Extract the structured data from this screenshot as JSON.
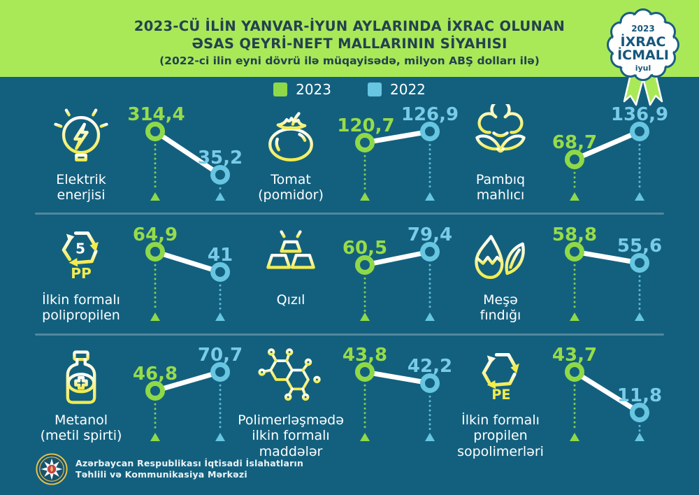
{
  "header": {
    "title_line1": "2023-CÜ İLİN YANVAR-İYUN AYLARINDA İXRAC OLUNAN",
    "title_line2": "ƏSAS QEYRİ-NEFT MALLARININ SİYAHISI",
    "title_line3": "(2022-ci ilin eyni dövrü ilə müqayisədə, milyon ABŞ dolları ilə)"
  },
  "badge": {
    "year": "2023",
    "line1": "İXRAC",
    "line2": "İCMALI",
    "month": "iyul"
  },
  "legend": [
    {
      "label": "2023",
      "color": "#8FD948"
    },
    {
      "label": "2022",
      "color": "#67C6E1"
    }
  ],
  "colors": {
    "bg": "#13607E",
    "header_green": "#A9E958",
    "title_dark": "#24414F",
    "green": "#8FD948",
    "green_text": "#97DC49",
    "blue": "#67C6E1",
    "blue_text": "#79CCE7",
    "icon_yellow": "#F2EC4D",
    "separator": "#5E8FA4",
    "badge_blue": "#1A5E83"
  },
  "chart_data": {
    "type": "line",
    "variant": "dumbbell-pair",
    "title": "2023-cü ilin yanvar-iyun aylarında ixrac olunan əsas qeyri-neft mallarının siyahısı",
    "subtitle": "2022-ci ilin eyni dövrü ilə müqayisədə",
    "unit": "milyon ABŞ dolları",
    "series_years": [
      "2023",
      "2022"
    ],
    "legend_position": "top-center",
    "items": [
      {
        "name": "Elektrik enerjisi",
        "icon": "light-bulb",
        "value_2023": 314.4,
        "value_2022": 35.2,
        "display_2023": "314,4",
        "display_2022": "35,2",
        "label_lines": [
          "Elektrik",
          "enerjisi"
        ]
      },
      {
        "name": "Tomat (pomidor)",
        "icon": "tomato",
        "value_2023": 120.7,
        "value_2022": 126.9,
        "display_2023": "120,7",
        "display_2022": "126,9",
        "label_lines": [
          "Tomat",
          "(pomidor)"
        ]
      },
      {
        "name": "Pambıq mahlıcı",
        "icon": "cotton",
        "value_2023": 68.7,
        "value_2022": 136.9,
        "display_2023": "68,7",
        "display_2022": "136,9",
        "label_lines": [
          "Pambıq",
          "mahlıcı"
        ]
      },
      {
        "name": "İlkin formalı polipropilen",
        "icon": "recycling-pp",
        "recycling_code": "5",
        "recycling_text": "PP",
        "value_2023": 64.9,
        "value_2022": 41,
        "display_2023": "64,9",
        "display_2022": "41",
        "label_lines": [
          "İlkin formalı",
          "polipropilen"
        ]
      },
      {
        "name": "Qızıl",
        "icon": "gold-bars",
        "value_2023": 60.5,
        "value_2022": 79.4,
        "display_2023": "60,5",
        "display_2022": "79,4",
        "label_lines": [
          "Qızıl"
        ]
      },
      {
        "name": "Meşə fındığı",
        "icon": "hazelnut",
        "value_2023": 58.8,
        "value_2022": 55.6,
        "display_2023": "58,8",
        "display_2022": "55,6",
        "label_lines": [
          "Meşə",
          "fındığı"
        ]
      },
      {
        "name": "Metanol (metil spirti)",
        "icon": "medicine-bottle",
        "value_2023": 46.8,
        "value_2022": 70.7,
        "display_2023": "46,8",
        "display_2022": "70,7",
        "label_lines": [
          "Metanol",
          "(metil spirti)"
        ]
      },
      {
        "name": "Polimerləşmədə ilkin formalı maddələr",
        "icon": "molecule",
        "value_2023": 43.8,
        "value_2022": 42.2,
        "display_2023": "43,8",
        "display_2022": "42,2",
        "label_lines": [
          "Polimerləşmədə",
          "ilkin formalı",
          "maddələr"
        ]
      },
      {
        "name": "İlkin formalı propilen sopolimerləri",
        "icon": "recycling-pe",
        "recycling_text": "PE",
        "value_2023": 43.7,
        "value_2022": 11.8,
        "display_2023": "43,7",
        "display_2022": "11,8",
        "label_lines": [
          "İlkin formalı",
          "propilen",
          "sopolimerləri"
        ]
      }
    ]
  },
  "footer": {
    "org_line1": "Azərbaycan Respublikası İqtisadi İslahatların",
    "org_line2": "Təhlili və Kommunikasiya Mərkəzi"
  }
}
